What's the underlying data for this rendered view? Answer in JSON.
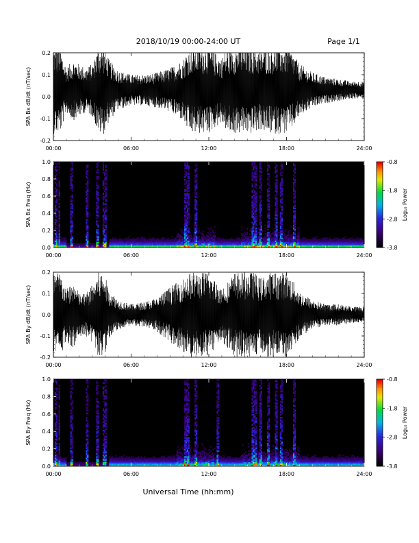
{
  "header": {
    "title": "2018/10/19   00:00-24:00 UT",
    "page": "Page 1/1"
  },
  "footer": {
    "xlabel": "Universal Time (hh:mm)"
  },
  "chart_data": [
    {
      "id": "bx-wave",
      "type": "line",
      "ylabel": "SPA Bx dB/dt (nT/sec)",
      "x_ticks": [
        "00:00",
        "06:00",
        "12:00",
        "18:00",
        "24:00"
      ],
      "xlim_hours": [
        0,
        24
      ],
      "ylim": [
        -0.2,
        0.2
      ],
      "y_ticks": [
        "0.2",
        "0.1",
        "0.0",
        "-0.1",
        "-0.2"
      ],
      "envelope": {
        "hours": [
          0,
          0.5,
          1,
          1.5,
          2,
          2.5,
          3,
          3.5,
          3.9,
          4.3,
          5,
          6,
          7,
          8,
          9,
          10,
          10.5,
          11,
          11.5,
          12,
          12.5,
          13,
          13.5,
          14,
          14.5,
          15,
          15.5,
          16,
          16.5,
          17,
          17.5,
          18,
          18.5,
          19,
          20,
          21,
          22,
          23,
          24
        ],
        "amplitude": [
          0.2,
          0.2,
          0.1,
          0.14,
          0.12,
          0.1,
          0.12,
          0.2,
          0.2,
          0.14,
          0.09,
          0.07,
          0.07,
          0.08,
          0.1,
          0.14,
          0.2,
          0.2,
          0.2,
          0.2,
          0.17,
          0.15,
          0.2,
          0.2,
          0.2,
          0.2,
          0.2,
          0.18,
          0.2,
          0.2,
          0.2,
          0.2,
          0.17,
          0.12,
          0.08,
          0.06,
          0.05,
          0.04,
          0.04
        ]
      },
      "offset": 0.03
    },
    {
      "id": "bx-spec",
      "type": "heatmap",
      "ylabel": "SPA Bx Freq (Hz)",
      "x_ticks": [
        "00:00",
        "06:00",
        "12:00",
        "18:00",
        "24:00"
      ],
      "ylim": [
        0,
        1.0
      ],
      "y_ticks": [
        "1.0",
        "0.8",
        "0.6",
        "0.4",
        "0.2",
        "0.0"
      ],
      "colorbar": {
        "label": "Log₁₀ Power",
        "range": [
          -3.8,
          -0.8
        ],
        "ticks": [
          "-0.8",
          "-1.8",
          "-2.8",
          "-3.8"
        ]
      },
      "bright_columns_hours": [
        0.2,
        0.45,
        1.4,
        2.6,
        3.4,
        3.9,
        4.05,
        10.2,
        10.4,
        11.0,
        15.4,
        15.6,
        16.0,
        16.6,
        17.2,
        17.6,
        18.6
      ],
      "active_intervals_hours": [
        [
          9.5,
          12.5
        ],
        [
          14.5,
          19.0
        ]
      ]
    },
    {
      "id": "by-wave",
      "type": "line",
      "ylabel": "SPA By dB/dt (nT/sec)",
      "x_ticks": [
        "00:00",
        "06:00",
        "12:00",
        "18:00",
        "24:00"
      ],
      "xlim_hours": [
        0,
        24
      ],
      "ylim": [
        -0.2,
        0.2
      ],
      "y_ticks": [
        "0.2",
        "0.1",
        "0.0",
        "-0.1",
        "-0.2"
      ],
      "envelope": {
        "hours": [
          0,
          0.5,
          1,
          1.5,
          2,
          2.5,
          3,
          3.5,
          3.9,
          4.3,
          5,
          6,
          7,
          8,
          9,
          10,
          10.5,
          11,
          11.5,
          12,
          12.5,
          13,
          13.5,
          14,
          14.5,
          15,
          15.5,
          16,
          16.5,
          17,
          17.5,
          18,
          18.5,
          19,
          20,
          21,
          22,
          23,
          24
        ],
        "amplitude": [
          0.2,
          0.2,
          0.12,
          0.16,
          0.1,
          0.1,
          0.14,
          0.2,
          0.2,
          0.12,
          0.07,
          0.05,
          0.06,
          0.08,
          0.13,
          0.17,
          0.2,
          0.2,
          0.2,
          0.2,
          0.16,
          0.13,
          0.16,
          0.2,
          0.2,
          0.2,
          0.2,
          0.17,
          0.2,
          0.2,
          0.2,
          0.2,
          0.16,
          0.11,
          0.07,
          0.05,
          0.05,
          0.04,
          0.04
        ]
      },
      "offset": 0.0
    },
    {
      "id": "by-spec",
      "type": "heatmap",
      "ylabel": "SPA By Freq (Hz)",
      "x_ticks": [
        "00:00",
        "06:00",
        "12:00",
        "18:00",
        "24:00"
      ],
      "ylim": [
        0,
        1.0
      ],
      "y_ticks": [
        "1.0",
        "0.8",
        "0.6",
        "0.4",
        "0.2",
        "0.0"
      ],
      "colorbar": {
        "label": "Log₁₀ Power",
        "range": [
          -3.8,
          -0.8
        ],
        "ticks": [
          "-0.8",
          "-1.8",
          "-2.8",
          "-3.8"
        ]
      },
      "bright_columns_hours": [
        0.2,
        0.45,
        1.4,
        2.6,
        3.4,
        3.9,
        4.05,
        10.2,
        10.4,
        11.0,
        12.7,
        15.4,
        15.6,
        16.0,
        16.6,
        17.2,
        17.6,
        18.6
      ],
      "active_intervals_hours": [
        [
          9.5,
          12.5
        ],
        [
          14.5,
          19.0
        ]
      ]
    }
  ]
}
